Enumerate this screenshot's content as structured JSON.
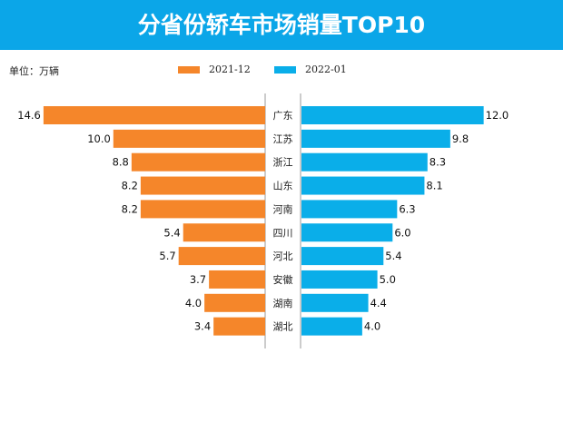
{
  "title": "分省份轿车市场销量TOP10",
  "unit_label": "单位：万辆",
  "colors": {
    "header": "#0ba6e8",
    "series_2021_12": "#f5862a",
    "series_2022_01": "#0aaee9"
  },
  "chart_data": {
    "type": "bar",
    "orientation": "horizontal-butterfly",
    "title": "分省份轿车市场销量TOP10",
    "categories": [
      "广东",
      "江苏",
      "浙江",
      "山东",
      "河南",
      "四川",
      "河北",
      "安徽",
      "湖南",
      "湖北"
    ],
    "series": [
      {
        "name": "2021-12",
        "values": [
          14.6,
          10.0,
          8.8,
          8.2,
          8.2,
          5.4,
          5.7,
          3.7,
          4.0,
          3.4
        ]
      },
      {
        "name": "2022-01",
        "values": [
          12.0,
          9.8,
          8.3,
          8.1,
          6.3,
          6.0,
          5.4,
          5.0,
          4.4,
          4.0
        ]
      }
    ],
    "legend_position": "top",
    "grid": false
  }
}
